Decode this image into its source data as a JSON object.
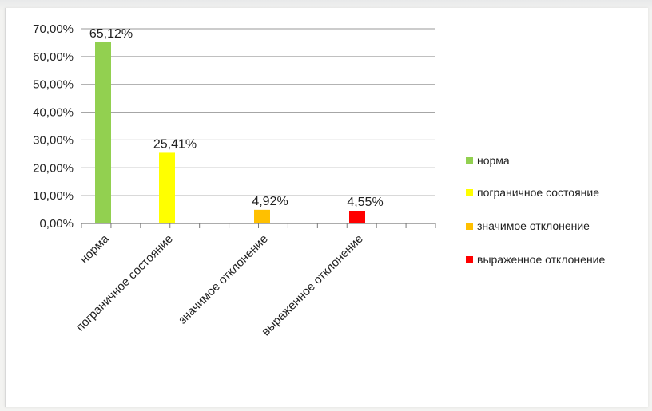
{
  "chart_data": {
    "type": "bar",
    "categories": [
      "норма",
      "пограничное состояние",
      "значимое отклонение",
      "выраженное отклонение"
    ],
    "values": [
      65.12,
      25.41,
      4.92,
      4.55
    ],
    "data_labels": [
      "65,12%",
      "25,41%",
      "4,92%",
      "4,55%"
    ],
    "colors": [
      "#92d050",
      "#ffff00",
      "#ffc000",
      "#ff0000"
    ],
    "y_ticks": [
      0,
      10,
      20,
      30,
      40,
      50,
      60,
      70
    ],
    "y_tick_labels": [
      "0,00%",
      "10,00%",
      "20,00%",
      "30,00%",
      "40,00%",
      "50,00%",
      "60,00%",
      "70,00%"
    ],
    "ylim": [
      0,
      70
    ],
    "grid": true,
    "title": "",
    "xlabel": "",
    "ylabel": "",
    "legend": {
      "position": "right",
      "entries": [
        "норма",
        "пограничное состояние",
        "значимое отклонение",
        "выраженное отклонение"
      ]
    }
  }
}
